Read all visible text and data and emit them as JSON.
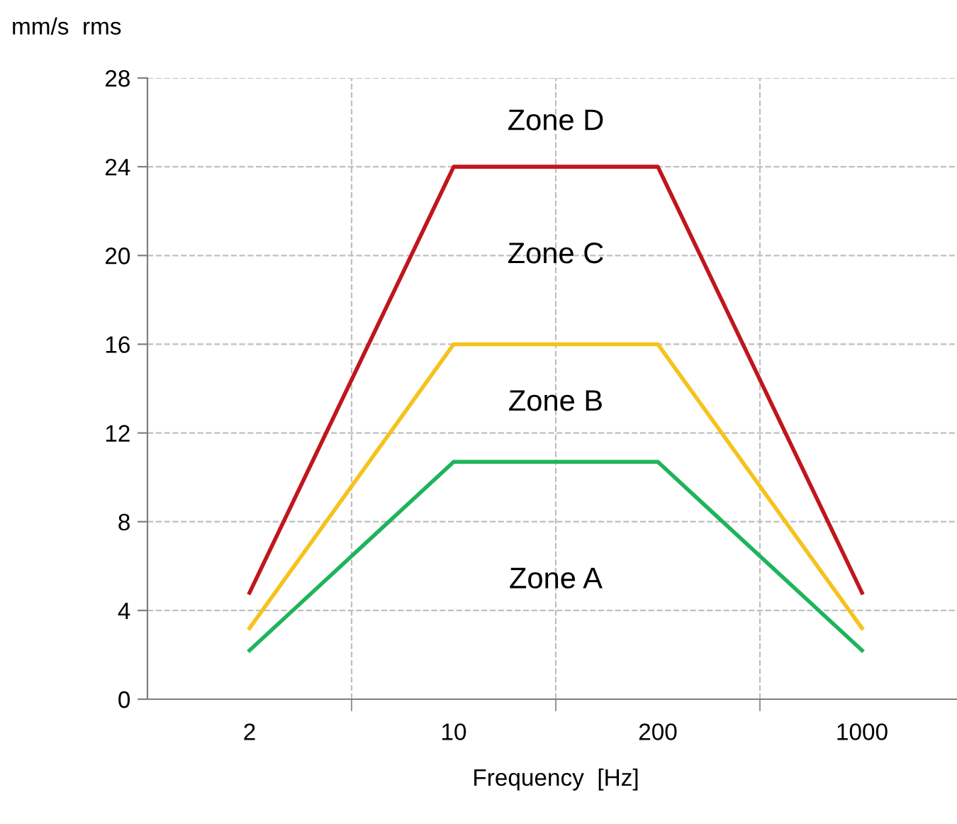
{
  "chart_data": {
    "type": "line",
    "xlabel": "Frequency  [Hz]",
    "ylabel": "mm/s  rms",
    "categories": [
      "2",
      "10",
      "200",
      "1000"
    ],
    "series": [
      {
        "color": "#c0161c",
        "values": [
          4.8,
          24,
          24,
          4.8
        ]
      },
      {
        "color": "#f6c21c",
        "values": [
          3.2,
          16,
          16,
          3.2
        ]
      },
      {
        "color": "#1fb45c",
        "values": [
          2.2,
          10.7,
          10.7,
          2.2
        ]
      }
    ],
    "ylim": [
      0,
      28
    ],
    "yticks": [
      0,
      4,
      8,
      12,
      16,
      20,
      24,
      28
    ],
    "grid": true,
    "marker": "none",
    "line_style": "solid",
    "annotations": [
      "Zone D",
      "Zone C",
      "Zone B",
      "Zone A"
    ]
  }
}
